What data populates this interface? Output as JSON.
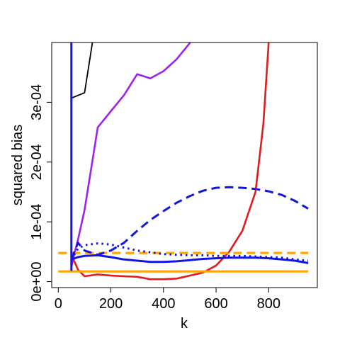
{
  "chart_data": {
    "type": "line",
    "title": "",
    "xlabel": "k",
    "ylabel": "squared bias",
    "xlim": [
      -25,
      985
    ],
    "ylim": [
      -1e-05,
      0.0004
    ],
    "x_ticks": [
      {
        "value": 0,
        "label": "0"
      },
      {
        "value": 200,
        "label": "200"
      },
      {
        "value": 400,
        "label": "400"
      },
      {
        "value": 600,
        "label": "600"
      },
      {
        "value": 800,
        "label": "800"
      }
    ],
    "y_ticks": [
      {
        "value": 0,
        "label": "0e+00"
      },
      {
        "value": 0.0001,
        "label": "1e-04"
      },
      {
        "value": 0.0002,
        "label": "2e-04"
      },
      {
        "value": 0.0003,
        "label": "3e-04"
      }
    ],
    "grid": false,
    "legend": "none",
    "series": [
      {
        "color": "#000000",
        "dash": "solid",
        "width": 1.8,
        "x": [
          50,
          50,
          100,
          130
        ],
        "y": [
          0.00045,
          0.000307,
          0.000316,
          0.0004
        ]
      },
      {
        "color": "#a020f0",
        "dash": "solid",
        "width": 2.6,
        "x": [
          50,
          60,
          75,
          100,
          150,
          200,
          250,
          300,
          350,
          400,
          450,
          500,
          540
        ],
        "y": [
          2.5e-05,
          4.5e-05,
          7e-05,
          0.00012,
          0.000258,
          0.000285,
          0.000312,
          0.000347,
          0.00034,
          0.000352,
          0.000372,
          0.000399,
          0.000425
        ]
      },
      {
        "color": "#e41a1c",
        "dash": "solid",
        "width": 2.6,
        "x": [
          50,
          75,
          100,
          150,
          200,
          250,
          300,
          350,
          400,
          450,
          500,
          550,
          600,
          650,
          700,
          750,
          780,
          800
        ],
        "y": [
          4.5e-05,
          2e-05,
          9e-06,
          1.2e-05,
          1e-05,
          9e-06,
          8e-06,
          4e-06,
          4e-06,
          5e-06,
          1e-05,
          1.5e-05,
          2.7e-05,
          5e-05,
          8.5e-05,
          0.00015,
          0.000265,
          0.0004
        ]
      },
      {
        "color": "#ffa500",
        "dash": "solid",
        "width": 3.2,
        "x": [
          0,
          950
        ],
        "y": [
          1.7e-05,
          1.7e-05
        ]
      },
      {
        "color": "#ffa500",
        "dash": "dashed",
        "width": 3.2,
        "x": [
          0,
          950
        ],
        "y": [
          4.8e-05,
          4.8e-05
        ]
      },
      {
        "color": "#1414e0",
        "dash": "solid",
        "width": 3.0,
        "x": [
          50,
          50
        ],
        "y": [
          0.0004,
          1.8e-05
        ]
      },
      {
        "color": "#1414e0",
        "dash": "solid",
        "width": 3.0,
        "x": [
          50,
          75,
          100,
          150,
          200,
          250,
          300,
          350,
          400,
          450,
          500,
          550,
          600,
          650,
          700,
          750,
          800,
          850,
          900,
          950
        ],
        "y": [
          3.7e-05,
          4.1e-05,
          4.3e-05,
          4.4e-05,
          4.1e-05,
          3.7e-05,
          3.5e-05,
          3.3e-05,
          3.3e-05,
          3.4e-05,
          3.6e-05,
          3.8e-05,
          3.9e-05,
          4e-05,
          4e-05,
          4e-05,
          3.9e-05,
          3.7e-05,
          3.5e-05,
          3.1e-05
        ]
      },
      {
        "color": "#1414e0",
        "dash": "dashed",
        "width": 3.0,
        "x": [
          50,
          75,
          100,
          150,
          200,
          250,
          300,
          350,
          400,
          450,
          500,
          550,
          600,
          650,
          700,
          750,
          800,
          850,
          900,
          950
        ],
        "y": [
          3.7e-05,
          6.5e-05,
          5.2e-05,
          4.5e-05,
          5.2e-05,
          6.5e-05,
          8.5e-05,
          0.000103,
          0.000118,
          0.000132,
          0.000143,
          0.000152,
          0.000157,
          0.000158,
          0.000157,
          0.000155,
          0.000151,
          0.000145,
          0.000135,
          0.000122
        ]
      },
      {
        "color": "#1414e0",
        "dash": "dotted",
        "width": 3.0,
        "x": [
          50,
          75,
          100,
          150,
          200,
          250,
          300,
          350,
          400,
          450,
          500,
          550,
          600,
          650,
          700,
          750,
          800,
          850,
          900,
          950
        ],
        "y": [
          3.7e-05,
          5.5e-05,
          6.1e-05,
          6.4e-05,
          6.2e-05,
          5.7e-05,
          5.2e-05,
          4.9e-05,
          4.6e-05,
          4.5e-05,
          4.4e-05,
          4.4e-05,
          4.3e-05,
          4.3e-05,
          4.3e-05,
          4.2e-05,
          4.1e-05,
          4e-05,
          3.7e-05,
          3.5e-05
        ]
      }
    ]
  }
}
